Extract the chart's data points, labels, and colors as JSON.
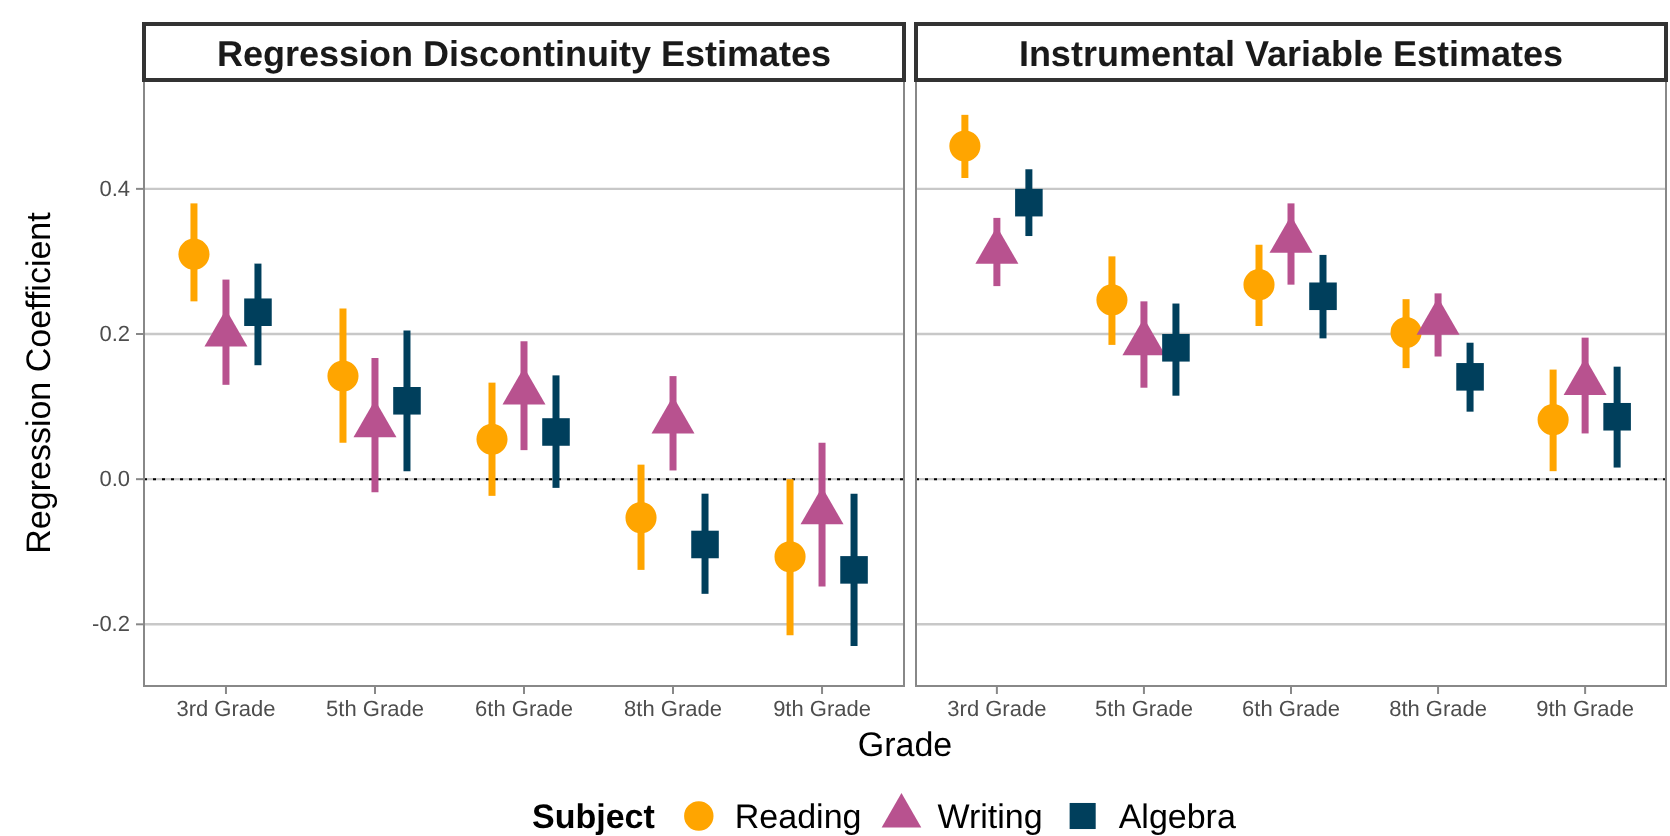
{
  "chart_data": [
    {
      "type": "scatter",
      "title": "Regression Discontinuity Estimates",
      "ylabel": "Regression Coefficient",
      "xlabel": "Grade",
      "legend_title": "Subject",
      "legend": "bottom",
      "grid": "y",
      "categories": [
        "3rd Grade",
        "5th Grade",
        "6th Grade",
        "8th Grade",
        "9th Grade"
      ],
      "ylim": [
        -0.285,
        0.55
      ],
      "yticks": [
        {
          "value": -0.2,
          "label": "-0.2"
        },
        {
          "value": 0,
          "label": "0.0"
        },
        {
          "value": 0.2,
          "label": "0.2"
        },
        {
          "value": 0.4,
          "label": "0.4"
        }
      ],
      "ref_lines": [
        {
          "axis": "y",
          "value": 0,
          "line_style": "dotted",
          "color": "#000000"
        }
      ],
      "series": [
        {
          "name": "Reading",
          "color": "#ffa500",
          "marker": "circle",
          "values": [
            0.31,
            0.142,
            0.055,
            -0.053,
            -0.107
          ],
          "errors": [
            [
              0.245,
              0.38
            ],
            [
              0.05,
              0.235
            ],
            [
              -0.023,
              0.133
            ],
            [
              -0.125,
              0.02
            ],
            [
              -0.215,
              0.0
            ]
          ]
        },
        {
          "name": "Writing",
          "color": "#b8528f",
          "marker": "triangle",
          "values": [
            0.2,
            0.075,
            0.12,
            0.08,
            -0.045
          ],
          "errors": [
            [
              0.13,
              0.275
            ],
            [
              -0.018,
              0.167
            ],
            [
              0.04,
              0.19
            ],
            [
              0.012,
              0.142
            ],
            [
              -0.148,
              0.05
            ]
          ]
        },
        {
          "name": "Algebra",
          "color": "#003f5c",
          "marker": "square",
          "values": [
            0.23,
            0.108,
            0.065,
            -0.09,
            -0.125
          ],
          "errors": [
            [
              0.157,
              0.297
            ],
            [
              0.011,
              0.205
            ],
            [
              -0.012,
              0.143
            ],
            [
              -0.158,
              -0.02
            ],
            [
              -0.23,
              -0.02
            ]
          ]
        }
      ]
    },
    {
      "type": "scatter",
      "title": "Instrumental Variable Estimates",
      "grid": "y",
      "tick_labels": "x",
      "categories": [
        "3rd Grade",
        "5th Grade",
        "6th Grade",
        "8th Grade",
        "9th Grade"
      ],
      "ylim": [
        -0.285,
        0.55
      ],
      "yticks": [
        {
          "value": -0.2,
          "label": null
        },
        {
          "value": 0,
          "label": null
        },
        {
          "value": 0.2,
          "label": null
        },
        {
          "value": 0.4,
          "label": null
        }
      ],
      "ref_lines": [
        {
          "axis": "y",
          "value": 0,
          "line_style": "dotted",
          "color": "#000000"
        }
      ],
      "series": [
        {
          "color": "#ffa500",
          "marker": "circle",
          "values": [
            0.459,
            0.247,
            0.268,
            0.202,
            0.082
          ],
          "errors": [
            [
              0.415,
              0.502
            ],
            [
              0.185,
              0.307
            ],
            [
              0.211,
              0.323
            ],
            [
              0.153,
              0.248
            ],
            [
              0.011,
              0.151
            ]
          ]
        },
        {
          "color": "#b8528f",
          "marker": "triangle",
          "values": [
            0.314,
            0.188,
            0.329,
            0.216,
            0.133
          ],
          "errors": [
            [
              0.266,
              0.36
            ],
            [
              0.126,
              0.245
            ],
            [
              0.268,
              0.38
            ],
            [
              0.169,
              0.256
            ],
            [
              0.063,
              0.195
            ]
          ]
        },
        {
          "color": "#003f5c",
          "marker": "square",
          "values": [
            0.381,
            0.181,
            0.252,
            0.141,
            0.086
          ],
          "errors": [
            [
              0.335,
              0.427
            ],
            [
              0.115,
              0.242
            ],
            [
              0.194,
              0.309
            ],
            [
              0.093,
              0.188
            ],
            [
              0.016,
              0.155
            ]
          ]
        }
      ]
    }
  ]
}
